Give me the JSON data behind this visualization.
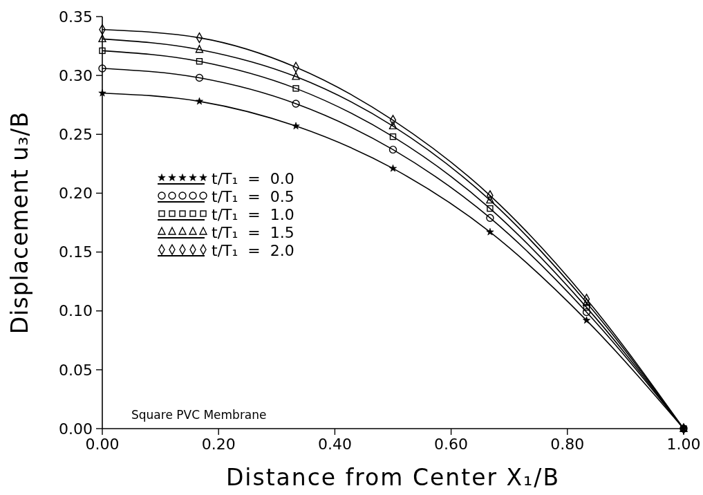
{
  "chart_data": {
    "type": "line",
    "xlabel": "Distance from Center X₁/B",
    "ylabel": "Displacement u₃/B",
    "x": [
      0,
      0.167,
      0.333,
      0.5,
      0.667,
      0.833,
      1.0
    ],
    "series": [
      {
        "name": "t/T₁  =  0.0",
        "color": "#000000",
        "marker": "star",
        "values": [
          0.285,
          0.278,
          0.257,
          0.221,
          0.167,
          0.092,
          0
        ]
      },
      {
        "name": "t/T₁  =  0.5",
        "color": "#000000",
        "marker": "circle",
        "values": [
          0.306,
          0.298,
          0.276,
          0.237,
          0.179,
          0.099,
          0
        ]
      },
      {
        "name": "t/T₁  =  1.0",
        "color": "#000000",
        "marker": "square",
        "values": [
          0.321,
          0.312,
          0.289,
          0.248,
          0.187,
          0.103,
          0
        ]
      },
      {
        "name": "t/T₁  =  1.5",
        "color": "#000000",
        "marker": "triangle",
        "values": [
          0.331,
          0.322,
          0.299,
          0.257,
          0.194,
          0.107,
          0
        ]
      },
      {
        "name": "t/T₁  =  2.0",
        "color": "#000000",
        "marker": "diamond",
        "values": [
          0.339,
          0.332,
          0.307,
          0.262,
          0.198,
          0.11,
          0
        ]
      }
    ],
    "xlim": [
      0,
      1
    ],
    "xticks": [
      {
        "value": 0,
        "label": "0.00"
      },
      {
        "value": 0.2,
        "label": "0.20"
      },
      {
        "value": 0.4,
        "label": "0.40"
      },
      {
        "value": 0.6,
        "label": "0.60"
      },
      {
        "value": 0.8,
        "label": "0.80"
      },
      {
        "value": 1,
        "label": "1.00"
      }
    ],
    "ylim": [
      0,
      0.35
    ],
    "yticks": [
      {
        "value": 0,
        "label": "0.00"
      },
      {
        "value": 0.05,
        "label": "0.05"
      },
      {
        "value": 0.1,
        "label": "0.10"
      },
      {
        "value": 0.15,
        "label": "0.15"
      },
      {
        "value": 0.2,
        "label": "0.20"
      },
      {
        "value": 0.25,
        "label": "0.25"
      },
      {
        "value": 0.3,
        "label": "0.30"
      },
      {
        "value": 0.35,
        "label": "0.35"
      }
    ],
    "annotations": [
      "Square PVC Membrane"
    ],
    "legend": "center left",
    "grid": false,
    "line_style": "solid"
  }
}
